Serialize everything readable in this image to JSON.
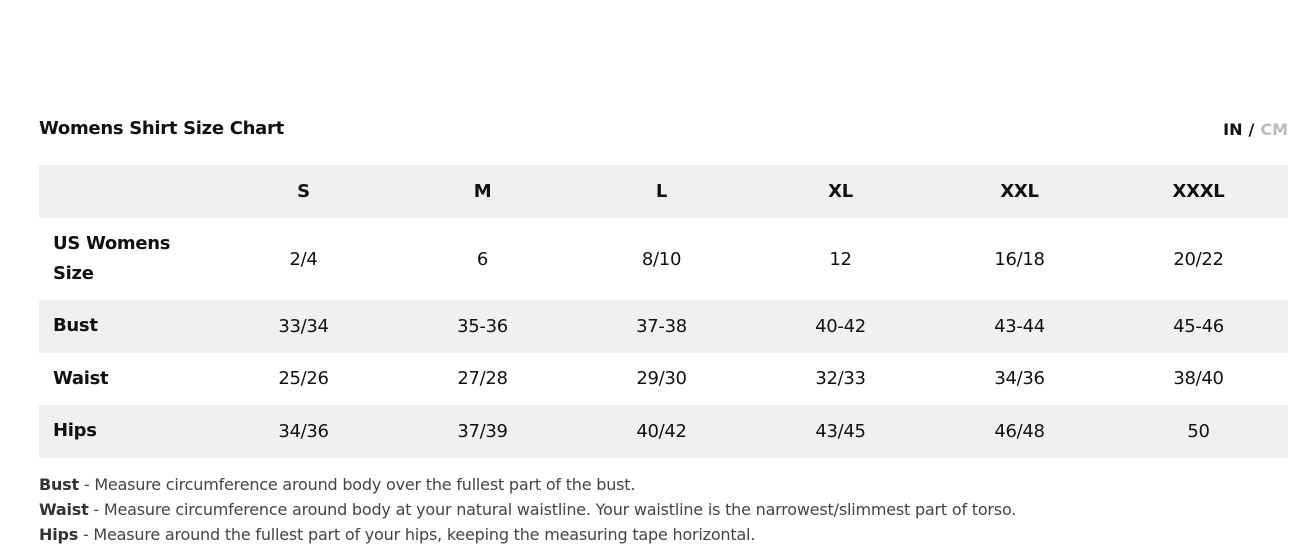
{
  "title": "Womens Shirt Size Chart",
  "units": {
    "in": "IN",
    "separator": "/",
    "cm": "CM",
    "selected": "IN"
  },
  "table": {
    "headers": [
      "",
      "S",
      "M",
      "L",
      "XL",
      "XXL",
      "XXXL"
    ],
    "rows": [
      {
        "label": "US Womens Size",
        "values": [
          "2/4",
          "6",
          "8/10",
          "12",
          "16/18",
          "20/22"
        ]
      },
      {
        "label": "Bust",
        "values": [
          "33/34",
          "35-36",
          "37-38",
          "40-42",
          "43-44",
          "45-46"
        ]
      },
      {
        "label": "Waist",
        "values": [
          "25/26",
          "27/28",
          "29/30",
          "32/33",
          "34/36",
          "38/40"
        ]
      },
      {
        "label": "Hips",
        "values": [
          "34/36",
          "37/39",
          "40/42",
          "43/45",
          "46/48",
          "50"
        ]
      }
    ]
  },
  "notes": [
    {
      "term": "Bust",
      "text": " - Measure circumference around body over the fullest part of the bust."
    },
    {
      "term": "Waist",
      "text": " - Measure circumference around body at your natural waistline. Your waistline is the narrowest/slimmest part of torso."
    },
    {
      "term": "Hips",
      "text": " - Measure around the fullest part of your hips, keeping the measuring tape horizontal."
    }
  ]
}
